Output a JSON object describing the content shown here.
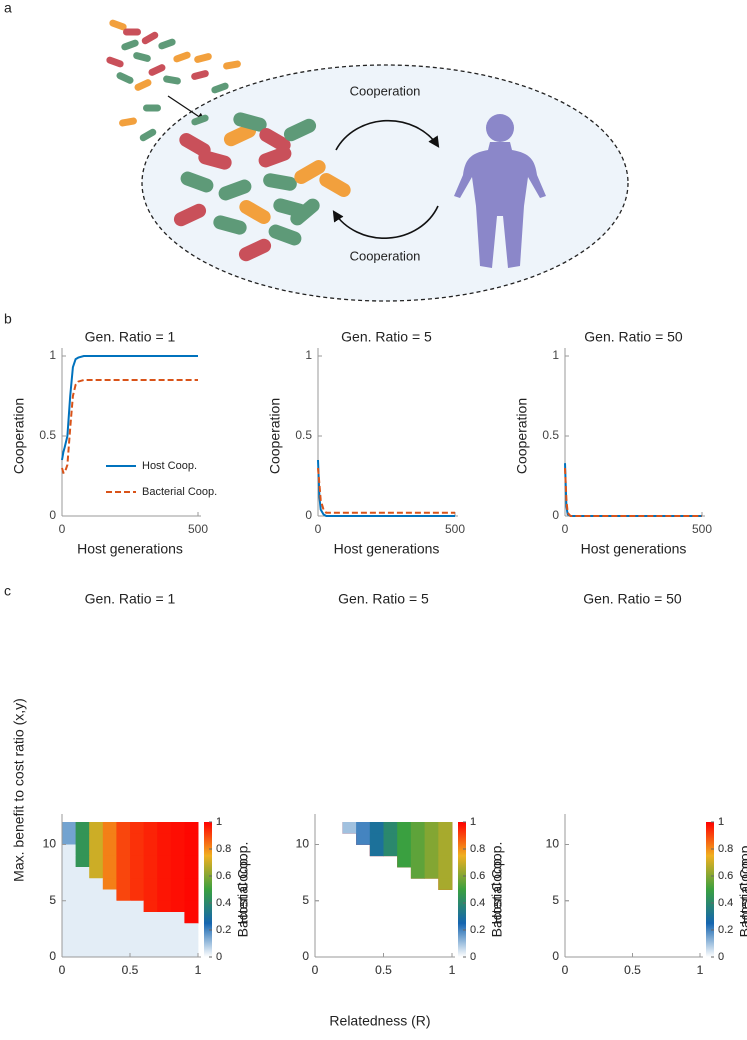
{
  "panel_labels": [
    "a",
    "b",
    "c"
  ],
  "diagram": {
    "labels": [
      "Cooperation",
      "Cooperation"
    ]
  },
  "panel_c": {
    "xlabel": "Relatedness (R)",
    "ylabel": "Max. benefit to cost ratio (x,y)"
  },
  "chart_data": [
    {
      "type": "line",
      "title": "Gen. Ratio = 1",
      "xlabel": "Host generations",
      "ylabel": "Cooperation",
      "x": [
        0,
        5,
        10,
        20,
        30,
        40,
        50,
        60,
        80,
        100,
        200,
        300,
        400,
        500
      ],
      "xlim": [
        0,
        500
      ],
      "xticks": [
        0,
        500
      ],
      "ylim": [
        0,
        1
      ],
      "yticks": [
        0,
        0.5,
        1
      ],
      "legend": "center right",
      "series": [
        {
          "name": "Host Coop.",
          "color": "#0072bd",
          "style": "solid",
          "values": [
            0.35,
            0.4,
            0.43,
            0.5,
            0.75,
            0.93,
            0.98,
            0.99,
            1,
            1,
            1,
            1,
            1,
            1
          ]
        },
        {
          "name": "Bacterial Coop.",
          "color": "#d95319",
          "style": "dashed",
          "values": [
            0.3,
            0.27,
            0.27,
            0.32,
            0.55,
            0.75,
            0.82,
            0.84,
            0.85,
            0.85,
            0.85,
            0.85,
            0.85,
            0.85
          ]
        }
      ]
    },
    {
      "type": "line",
      "title": "Gen. Ratio = 5",
      "xlabel": "Host generations",
      "ylabel": "Cooperation",
      "x": [
        0,
        5,
        10,
        20,
        30,
        40,
        50,
        60,
        80,
        100,
        200,
        300,
        400,
        500
      ],
      "xlim": [
        0,
        500
      ],
      "xticks": [
        0,
        500
      ],
      "ylim": [
        0,
        1
      ],
      "yticks": [
        0,
        0.5,
        1
      ],
      "series": [
        {
          "color": "#0072bd",
          "style": "solid",
          "values": [
            0.35,
            0.12,
            0.04,
            0.01,
            0,
            0,
            0,
            0,
            0,
            0,
            0,
            0,
            0,
            0
          ]
        },
        {
          "color": "#d95319",
          "style": "dashed",
          "values": [
            0.3,
            0.2,
            0.1,
            0.04,
            0.02,
            0.02,
            0.02,
            0.02,
            0.02,
            0.02,
            0.02,
            0.02,
            0.02,
            0.02
          ]
        }
      ]
    },
    {
      "type": "line",
      "title": "Gen. Ratio = 50",
      "xlabel": "Host generations",
      "ylabel": "Cooperation",
      "x": [
        0,
        5,
        10,
        20,
        30,
        40,
        50,
        60,
        80,
        100,
        200,
        300,
        400,
        500
      ],
      "xlim": [
        0,
        500
      ],
      "xticks": [
        0,
        500
      ],
      "ylim": [
        0,
        1
      ],
      "yticks": [
        0,
        0.5,
        1
      ],
      "series": [
        {
          "color": "#0072bd",
          "style": "solid",
          "values": [
            0.33,
            0.06,
            0.01,
            0,
            0,
            0,
            0,
            0,
            0,
            0,
            0,
            0,
            0,
            0
          ]
        },
        {
          "color": "#d95319",
          "style": "dashed",
          "values": [
            0.3,
            0.1,
            0.02,
            0,
            0,
            0,
            0,
            0,
            0,
            0,
            0,
            0,
            0,
            0
          ]
        }
      ]
    },
    {
      "type": "heatmap",
      "title": "Gen. Ratio = 1",
      "colorbar_label": "Host Coop.",
      "xlim": [
        0,
        1
      ],
      "xticks": [
        0,
        0.5,
        1
      ],
      "ylim": [
        0,
        12
      ],
      "yticks": [
        0,
        5,
        10
      ],
      "clim": [
        0,
        1
      ],
      "cticks": [
        0,
        0.2,
        0.4,
        0.6,
        0.8,
        1
      ],
      "colormap": [
        "#ffffff",
        "#1565b0",
        "#3aa040",
        "#f0b020",
        "#ff0000"
      ],
      "x": [
        0.05,
        0.15,
        0.25,
        0.35,
        0.45,
        0.55,
        0.65,
        0.75,
        0.85,
        0.95
      ],
      "y": [
        11.5,
        10.5,
        9.5,
        8.5,
        7.5,
        6.5,
        5.5,
        4.5,
        3.5,
        2.5,
        1.5,
        0.5
      ],
      "values": [
        [
          1,
          1,
          1,
          1,
          1,
          1,
          1,
          1,
          1,
          1
        ],
        [
          1,
          1,
          1,
          1,
          1,
          1,
          1,
          1,
          1,
          1
        ],
        [
          null,
          1,
          1,
          1,
          1,
          1,
          1,
          1,
          1,
          1
        ],
        [
          null,
          1,
          1,
          1,
          1,
          1,
          1,
          1,
          1,
          1
        ],
        [
          null,
          null,
          1,
          1,
          1,
          1,
          1,
          1,
          1,
          1
        ],
        [
          null,
          null,
          null,
          1,
          1,
          1,
          1,
          1,
          1,
          1
        ],
        [
          null,
          null,
          null,
          null,
          1,
          1,
          1,
          1,
          1,
          1
        ],
        [
          null,
          null,
          null,
          null,
          null,
          null,
          1,
          1,
          1,
          1
        ],
        [
          null,
          null,
          null,
          null,
          null,
          null,
          null,
          null,
          null,
          1
        ],
        [
          null,
          null,
          null,
          null,
          null,
          null,
          null,
          null,
          null,
          null
        ],
        [
          null,
          null,
          null,
          null,
          null,
          null,
          null,
          null,
          null,
          null
        ],
        [
          null,
          null,
          null,
          null,
          null,
          null,
          null,
          null,
          null,
          null
        ]
      ]
    },
    {
      "type": "heatmap",
      "title": "Gen. Ratio = 5",
      "colorbar_label": "Host Coop.",
      "xlim": [
        0,
        1
      ],
      "xticks": [
        0,
        0.5,
        1
      ],
      "ylim": [
        0,
        12
      ],
      "yticks": [
        0,
        5,
        10
      ],
      "clim": [
        0,
        1
      ],
      "cticks": [
        0,
        0.2,
        0.4,
        0.6,
        0.8,
        1
      ],
      "colormap": [
        "#ffffff",
        "#1565b0",
        "#3aa040",
        "#f0b020",
        "#ff0000"
      ],
      "x": [
        0.05,
        0.15,
        0.25,
        0.35,
        0.45,
        0.55,
        0.65,
        0.75,
        0.85,
        0.95
      ],
      "y": [
        11.5,
        10.5,
        9.5,
        8.5,
        7.5,
        6.5,
        5.5,
        4.5,
        3.5,
        2.5,
        1.5,
        0.5
      ],
      "values": [
        [
          null,
          null,
          1,
          1,
          1,
          1,
          1,
          1,
          1,
          1
        ],
        [
          null,
          null,
          null,
          1,
          1,
          1,
          1,
          1,
          1,
          1
        ],
        [
          null,
          null,
          null,
          null,
          1,
          1,
          1,
          1,
          1,
          1
        ],
        [
          null,
          null,
          null,
          null,
          null,
          null,
          1,
          1,
          1,
          1
        ],
        [
          null,
          null,
          null,
          null,
          null,
          null,
          null,
          1,
          1,
          1
        ],
        [
          null,
          null,
          null,
          null,
          null,
          null,
          null,
          null,
          null,
          1
        ],
        [
          null,
          null,
          null,
          null,
          null,
          null,
          null,
          null,
          null,
          null
        ],
        [
          null,
          null,
          null,
          null,
          null,
          null,
          null,
          null,
          null,
          null
        ],
        [
          null,
          null,
          null,
          null,
          null,
          null,
          null,
          null,
          null,
          null
        ],
        [
          null,
          null,
          null,
          null,
          null,
          null,
          null,
          null,
          null,
          null
        ],
        [
          null,
          null,
          null,
          null,
          null,
          null,
          null,
          null,
          null,
          null
        ],
        [
          null,
          null,
          null,
          null,
          null,
          null,
          null,
          null,
          null,
          null
        ]
      ]
    },
    {
      "type": "heatmap",
      "title": "Gen. Ratio = 50",
      "colorbar_label": "Host Coop.",
      "xlim": [
        0,
        1
      ],
      "xticks": [
        0,
        0.5,
        1
      ],
      "ylim": [
        0,
        12
      ],
      "yticks": [
        0,
        5,
        10
      ],
      "clim": [
        0,
        1
      ],
      "cticks": [
        0,
        0.2,
        0.4,
        0.6,
        0.8,
        1
      ],
      "colormap": [
        "#ffffff",
        "#1565b0",
        "#3aa040",
        "#f0b020",
        "#ff0000"
      ]
    },
    {
      "type": "heatmap",
      "colorbar_label": "Bacterial Coop.",
      "xlim": [
        0,
        1
      ],
      "xticks": [
        0,
        0.5,
        1
      ],
      "ylim": [
        0,
        12
      ],
      "yticks": [
        0,
        5,
        10
      ],
      "clim": [
        0,
        1
      ],
      "cticks": [
        0,
        0.2,
        0.4,
        0.6,
        0.8,
        1
      ],
      "colormap": [
        "#ffffff",
        "#1565b0",
        "#3aa040",
        "#f0b020",
        "#ff0000"
      ],
      "x": [
        0.05,
        0.15,
        0.25,
        0.35,
        0.45,
        0.55,
        0.65,
        0.75,
        0.85,
        0.95
      ],
      "y": [
        11.5,
        10.5,
        9.5,
        8.5,
        7.5,
        6.5,
        5.5,
        4.5,
        3.5,
        2.5,
        1.5,
        0.5
      ],
      "values": [
        [
          0.15,
          0.45,
          0.7,
          0.82,
          0.9,
          0.93,
          0.95,
          0.97,
          0.98,
          0.99
        ],
        [
          0.15,
          0.45,
          0.7,
          0.82,
          0.9,
          0.93,
          0.95,
          0.97,
          0.98,
          0.99
        ],
        [
          0.03,
          0.45,
          0.7,
          0.82,
          0.9,
          0.93,
          0.95,
          0.97,
          0.98,
          0.99
        ],
        [
          0.03,
          0.45,
          0.7,
          0.82,
          0.9,
          0.93,
          0.95,
          0.97,
          0.98,
          0.99
        ],
        [
          0.03,
          0.03,
          0.7,
          0.82,
          0.9,
          0.93,
          0.95,
          0.97,
          0.98,
          0.99
        ],
        [
          0.03,
          0.03,
          0.03,
          0.82,
          0.9,
          0.93,
          0.95,
          0.97,
          0.98,
          0.99
        ],
        [
          0.03,
          0.03,
          0.03,
          0.03,
          0.9,
          0.93,
          0.95,
          0.97,
          0.98,
          0.99
        ],
        [
          0.03,
          0.03,
          0.03,
          0.03,
          0.03,
          0.03,
          0.95,
          0.97,
          0.98,
          0.99
        ],
        [
          0.03,
          0.03,
          0.03,
          0.03,
          0.03,
          0.03,
          0.03,
          0.03,
          0.03,
          0.99
        ],
        [
          0.03,
          0.03,
          0.03,
          0.03,
          0.03,
          0.03,
          0.03,
          0.03,
          0.03,
          0.03
        ],
        [
          0.03,
          0.03,
          0.03,
          0.03,
          0.03,
          0.03,
          0.03,
          0.03,
          0.03,
          0.03
        ],
        [
          0.03,
          0.03,
          0.03,
          0.03,
          0.03,
          0.03,
          0.03,
          0.03,
          0.03,
          0.03
        ]
      ]
    },
    {
      "type": "heatmap",
      "colorbar_label": "Bacterial Coop.",
      "xlim": [
        0,
        1
      ],
      "xticks": [
        0,
        0.5,
        1
      ],
      "ylim": [
        0,
        12
      ],
      "yticks": [
        0,
        5,
        10
      ],
      "clim": [
        0,
        1
      ],
      "cticks": [
        0,
        0.2,
        0.4,
        0.6,
        0.8,
        1
      ],
      "colormap": [
        "#ffffff",
        "#1565b0",
        "#3aa040",
        "#f0b020",
        "#ff0000"
      ],
      "x": [
        0.05,
        0.15,
        0.25,
        0.35,
        0.45,
        0.55,
        0.65,
        0.75,
        0.85,
        0.95
      ],
      "y": [
        11.5,
        10.5,
        9.5,
        8.5,
        7.5,
        6.5,
        5.5,
        4.5,
        3.5,
        2.5,
        1.5,
        0.5
      ],
      "values": [
        [
          null,
          null,
          0.1,
          0.2,
          0.3,
          0.4,
          0.5,
          0.55,
          0.6,
          0.65
        ],
        [
          null,
          null,
          null,
          0.2,
          0.3,
          0.4,
          0.5,
          0.55,
          0.6,
          0.65
        ],
        [
          null,
          null,
          null,
          null,
          0.3,
          0.4,
          0.5,
          0.55,
          0.6,
          0.65
        ],
        [
          null,
          null,
          null,
          null,
          null,
          null,
          0.5,
          0.55,
          0.6,
          0.65
        ],
        [
          null,
          null,
          null,
          null,
          null,
          null,
          null,
          0.55,
          0.6,
          0.65
        ],
        [
          null,
          null,
          null,
          null,
          null,
          null,
          null,
          null,
          null,
          0.65
        ],
        [
          null,
          null,
          null,
          null,
          null,
          null,
          null,
          null,
          null,
          null
        ],
        [
          null,
          null,
          null,
          null,
          null,
          null,
          null,
          null,
          null,
          null
        ],
        [
          null,
          null,
          null,
          null,
          null,
          null,
          null,
          null,
          null,
          null
        ],
        [
          null,
          null,
          null,
          null,
          null,
          null,
          null,
          null,
          null,
          null
        ],
        [
          null,
          null,
          null,
          null,
          null,
          null,
          null,
          null,
          null,
          null
        ],
        [
          null,
          null,
          null,
          null,
          null,
          null,
          null,
          null,
          null,
          null
        ]
      ]
    },
    {
      "type": "heatmap",
      "colorbar_label": "Bacterial Coop.",
      "xlim": [
        0,
        1
      ],
      "xticks": [
        0,
        0.5,
        1
      ],
      "ylim": [
        0,
        12
      ],
      "yticks": [
        0,
        5,
        10
      ],
      "clim": [
        0,
        1
      ],
      "cticks": [
        0,
        0.2,
        0.4,
        0.6,
        0.8,
        1
      ],
      "colormap": [
        "#ffffff",
        "#1565b0",
        "#3aa040",
        "#f0b020",
        "#ff0000"
      ]
    }
  ]
}
